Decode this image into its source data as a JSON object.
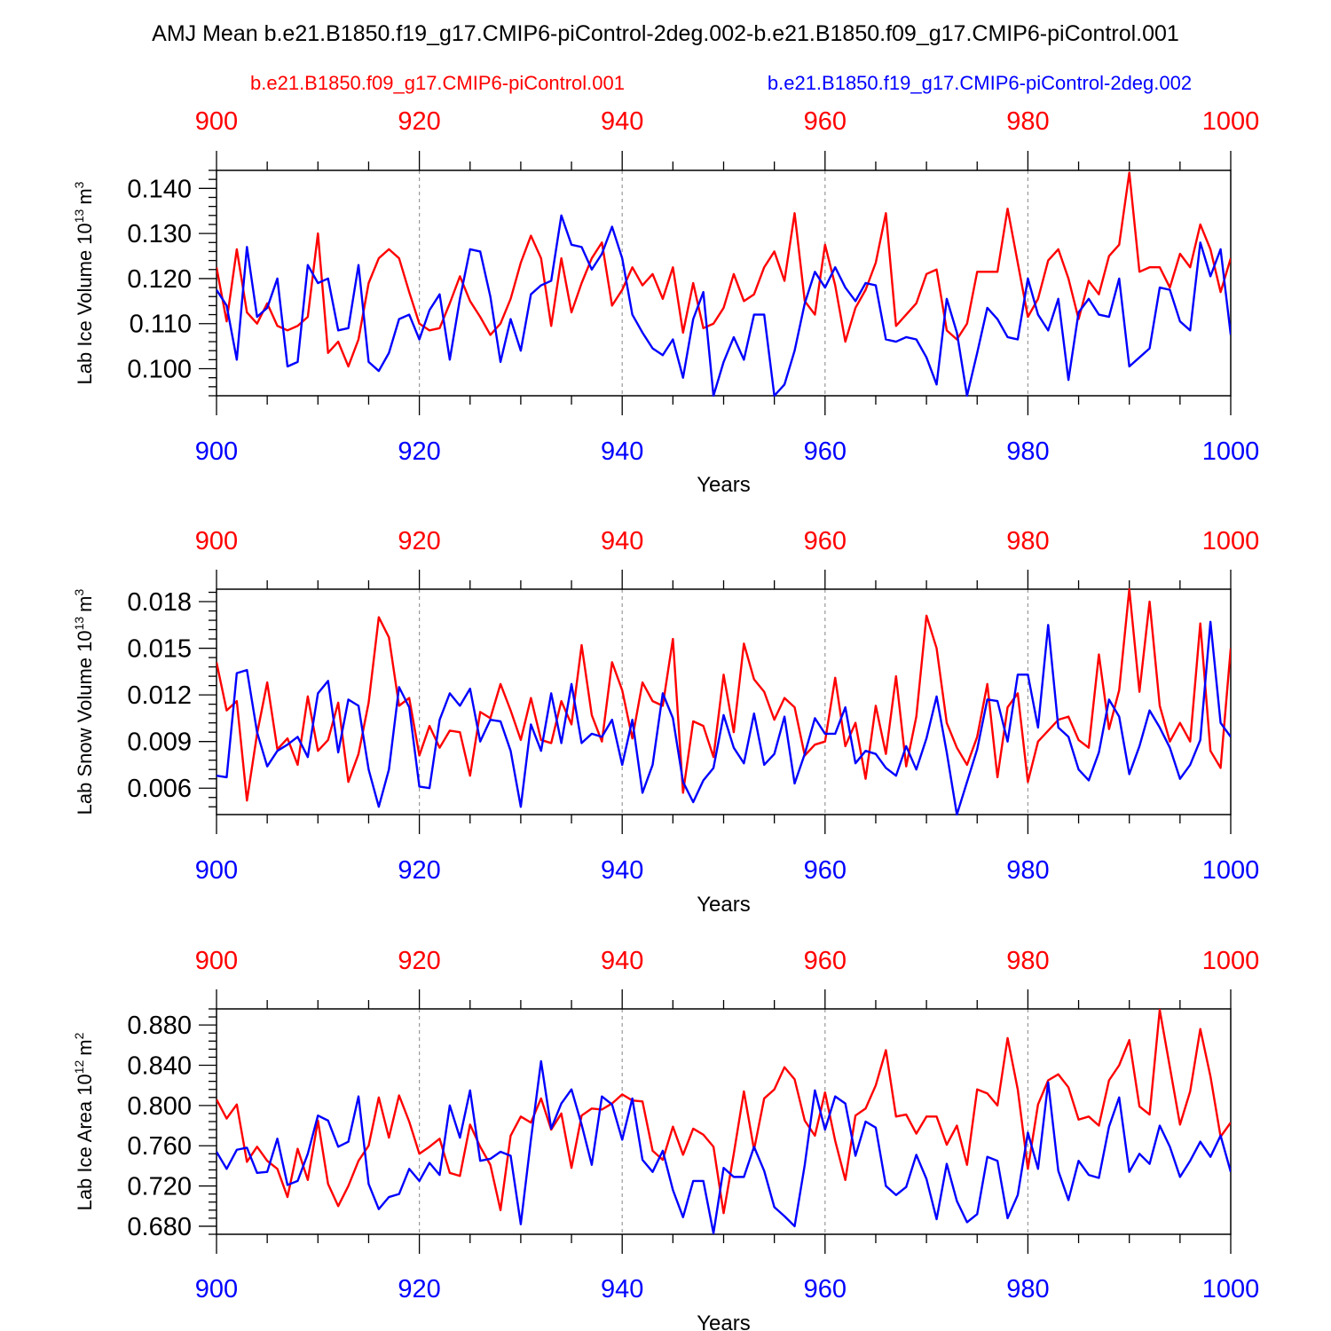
{
  "figure": {
    "title": "AMJ Mean b.e21.B1850.f19_g17.CMIP6-piControl-2deg.002-b.e21.B1850.f09_g17.CMIP6-piControl.001"
  },
  "chart_data": [
    {
      "type": "line",
      "title": "AMJ Mean b.e21.B1850.f19_g17.CMIP6-piControl-2deg.002-b.e21.B1850.f09_g17.CMIP6-piControl.001",
      "xlabel": "Years",
      "ylabel": "Lab Ice Volume 10",
      "ylabel_exp": "13",
      "ylabel_unit": "m",
      "ylabel_unit_exp": "3",
      "xlim": [
        900,
        1000
      ],
      "ylim": [
        0.094,
        0.144
      ],
      "xticks": [
        "900",
        "920",
        "940",
        "960",
        "980",
        "1000"
      ],
      "yticks": [
        "0.100",
        "0.110",
        "0.120",
        "0.130",
        "0.140"
      ],
      "top_x_color": "#ff0000",
      "bottom_x_color": "#0000ff",
      "series": [
        {
          "name": "b.e21.B1850.f09_g17.CMIP6-piControl.001",
          "color": "#ff0000",
          "values": [
            0.1225,
            0.1105,
            0.1265,
            0.1125,
            0.11,
            0.1145,
            0.1095,
            0.1085,
            0.1095,
            0.1115,
            0.13,
            0.1035,
            0.106,
            0.1005,
            0.1065,
            0.119,
            0.1245,
            0.1265,
            0.1245,
            0.117,
            0.11,
            0.1085,
            0.109,
            0.1145,
            0.1205,
            0.115,
            0.1115,
            0.1075,
            0.11,
            0.1155,
            0.1235,
            0.1295,
            0.1245,
            0.1095,
            0.1245,
            0.1125,
            0.119,
            0.1245,
            0.128,
            0.114,
            0.1175,
            0.1225,
            0.1185,
            0.121,
            0.1155,
            0.1225,
            0.108,
            0.119,
            0.109,
            0.11,
            0.1135,
            0.121,
            0.115,
            0.1165,
            0.1225,
            0.126,
            0.1195,
            0.1345,
            0.115,
            0.112,
            0.1275,
            0.1185,
            0.106,
            0.1135,
            0.1175,
            0.1235,
            0.1345,
            0.1095,
            0.112,
            0.1145,
            0.121,
            0.122,
            0.1085,
            0.1065,
            0.11,
            0.1215,
            0.1215,
            0.1215,
            0.1355,
            0.1235,
            0.1115,
            0.1155,
            0.124,
            0.1265,
            0.12,
            0.111,
            0.1195,
            0.1165,
            0.125,
            0.1275,
            0.1435,
            0.1215,
            0.1225,
            0.1225,
            0.118,
            0.1255,
            0.1225,
            0.132,
            0.1265,
            0.117,
            0.1245
          ]
        },
        {
          "name": "b.e21.B1850.f19_g17.CMIP6-piControl-2deg.002",
          "color": "#0000ff",
          "values": [
            0.1175,
            0.114,
            0.102,
            0.127,
            0.1115,
            0.1135,
            0.12,
            0.1005,
            0.1015,
            0.123,
            0.119,
            0.12,
            0.1085,
            0.109,
            0.123,
            0.1015,
            0.0995,
            0.1035,
            0.111,
            0.112,
            0.1065,
            0.113,
            0.1165,
            0.102,
            0.1155,
            0.1265,
            0.126,
            0.116,
            0.1015,
            0.111,
            0.104,
            0.1165,
            0.1185,
            0.1195,
            0.134,
            0.1275,
            0.127,
            0.122,
            0.1255,
            0.1315,
            0.1245,
            0.112,
            0.108,
            0.1045,
            0.103,
            0.1065,
            0.098,
            0.111,
            0.117,
            0.094,
            0.1015,
            0.107,
            0.102,
            0.112,
            0.112,
            0.094,
            0.0965,
            0.104,
            0.1145,
            0.1215,
            0.118,
            0.1225,
            0.118,
            0.115,
            0.119,
            0.1185,
            0.1065,
            0.106,
            0.107,
            0.1065,
            0.1025,
            0.0965,
            0.1155,
            0.108,
            0.094,
            0.1035,
            0.1135,
            0.111,
            0.107,
            0.1065,
            0.12,
            0.112,
            0.1085,
            0.1155,
            0.0975,
            0.1125,
            0.1155,
            0.112,
            0.1115,
            0.12,
            0.1005,
            0.1025,
            0.1045,
            0.118,
            0.1175,
            0.1105,
            0.1085,
            0.128,
            0.1205,
            0.1265,
            0.1075
          ]
        }
      ]
    },
    {
      "type": "line",
      "xlabel": "Years",
      "ylabel": "Lab Snow Volume 10",
      "ylabel_exp": "13",
      "ylabel_unit": "m",
      "ylabel_unit_exp": "3",
      "xlim": [
        900,
        1000
      ],
      "ylim": [
        0.0043,
        0.0188
      ],
      "xticks": [
        "900",
        "920",
        "940",
        "960",
        "980",
        "1000"
      ],
      "yticks": [
        "0.006",
        "0.009",
        "0.012",
        "0.015",
        "0.018"
      ],
      "top_x_color": "#ff0000",
      "bottom_x_color": "#0000ff",
      "series": [
        {
          "name": "b.e21.B1850.f09_g17.CMIP6-piControl.001",
          "color": "#ff0000",
          "values": [
            0.0141,
            0.011,
            0.0116,
            0.0052,
            0.0095,
            0.0128,
            0.0085,
            0.0092,
            0.0075,
            0.0119,
            0.0084,
            0.0091,
            0.0115,
            0.0064,
            0.0082,
            0.0115,
            0.017,
            0.0157,
            0.0113,
            0.0118,
            0.0081,
            0.01,
            0.0086,
            0.0097,
            0.0096,
            0.0068,
            0.0109,
            0.0105,
            0.0127,
            0.011,
            0.0091,
            0.0118,
            0.0091,
            0.0089,
            0.0116,
            0.0101,
            0.0152,
            0.0107,
            0.009,
            0.0141,
            0.0123,
            0.0092,
            0.0128,
            0.0116,
            0.0113,
            0.0156,
            0.0057,
            0.0103,
            0.01,
            0.008,
            0.0133,
            0.0096,
            0.0153,
            0.013,
            0.0122,
            0.0104,
            0.0118,
            0.0112,
            0.0081,
            0.0088,
            0.009,
            0.0131,
            0.0087,
            0.0102,
            0.0066,
            0.0113,
            0.0082,
            0.0132,
            0.0074,
            0.0106,
            0.0171,
            0.015,
            0.0102,
            0.0086,
            0.0075,
            0.0093,
            0.0127,
            0.0067,
            0.0112,
            0.0121,
            0.0064,
            0.009,
            0.0097,
            0.0104,
            0.0106,
            0.0091,
            0.0086,
            0.0146,
            0.0098,
            0.0123,
            0.0188,
            0.0122,
            0.018,
            0.0113,
            0.009,
            0.0102,
            0.009,
            0.0166,
            0.0084,
            0.0073,
            0.015
          ]
        },
        {
          "name": "b.e21.B1850.f19_g17.CMIP6-piControl-2deg.002",
          "color": "#0000ff",
          "values": [
            0.0068,
            0.0067,
            0.0134,
            0.0136,
            0.0096,
            0.0074,
            0.0084,
            0.0088,
            0.0093,
            0.008,
            0.0121,
            0.0129,
            0.0083,
            0.0117,
            0.0113,
            0.0072,
            0.0048,
            0.0072,
            0.0125,
            0.0112,
            0.0061,
            0.006,
            0.0104,
            0.0121,
            0.0113,
            0.0124,
            0.009,
            0.0104,
            0.0103,
            0.0084,
            0.0048,
            0.0101,
            0.0084,
            0.0121,
            0.0089,
            0.0127,
            0.0089,
            0.0095,
            0.0093,
            0.0104,
            0.0075,
            0.0104,
            0.0057,
            0.0075,
            0.0121,
            0.0105,
            0.0064,
            0.0051,
            0.0065,
            0.0073,
            0.0107,
            0.0086,
            0.0076,
            0.0108,
            0.0075,
            0.0082,
            0.0106,
            0.0063,
            0.0082,
            0.0105,
            0.0095,
            0.0095,
            0.0112,
            0.0076,
            0.0084,
            0.0082,
            0.0073,
            0.0068,
            0.0087,
            0.0072,
            0.0092,
            0.0119,
            0.0083,
            0.0043,
            0.0064,
            0.0085,
            0.0117,
            0.0116,
            0.009,
            0.0133,
            0.0133,
            0.0099,
            0.0165,
            0.0099,
            0.0093,
            0.0072,
            0.0065,
            0.0083,
            0.0117,
            0.0106,
            0.0069,
            0.0087,
            0.011,
            0.0099,
            0.0086,
            0.0066,
            0.0075,
            0.0091,
            0.0167,
            0.0102,
            0.0093
          ]
        }
      ]
    },
    {
      "type": "line",
      "xlabel": "Years",
      "ylabel": "Lab Ice Area 10",
      "ylabel_exp": "12",
      "ylabel_unit": "m",
      "ylabel_unit_exp": "2",
      "xlim": [
        900,
        1000
      ],
      "ylim": [
        0.672,
        0.896
      ],
      "xticks": [
        "900",
        "920",
        "940",
        "960",
        "980",
        "1000"
      ],
      "yticks": [
        "0.680",
        "0.720",
        "0.760",
        "0.800",
        "0.840",
        "0.880"
      ],
      "top_x_color": "#ff0000",
      "bottom_x_color": "#0000ff",
      "series": [
        {
          "name": "b.e21.B1850.f09_g17.CMIP6-piControl.001",
          "color": "#ff0000",
          "values": [
            0.806,
            0.787,
            0.801,
            0.744,
            0.759,
            0.745,
            0.737,
            0.709,
            0.757,
            0.726,
            0.785,
            0.722,
            0.7,
            0.72,
            0.745,
            0.76,
            0.808,
            0.768,
            0.81,
            0.784,
            0.752,
            0.759,
            0.767,
            0.733,
            0.73,
            0.781,
            0.759,
            0.741,
            0.696,
            0.77,
            0.789,
            0.783,
            0.807,
            0.776,
            0.792,
            0.738,
            0.79,
            0.797,
            0.796,
            0.802,
            0.811,
            0.805,
            0.804,
            0.755,
            0.746,
            0.779,
            0.751,
            0.777,
            0.771,
            0.759,
            0.693,
            0.752,
            0.814,
            0.756,
            0.807,
            0.816,
            0.838,
            0.826,
            0.785,
            0.77,
            0.813,
            0.765,
            0.726,
            0.79,
            0.797,
            0.82,
            0.855,
            0.789,
            0.791,
            0.772,
            0.789,
            0.789,
            0.761,
            0.78,
            0.741,
            0.816,
            0.812,
            0.8,
            0.867,
            0.816,
            0.737,
            0.801,
            0.825,
            0.831,
            0.818,
            0.786,
            0.789,
            0.78,
            0.825,
            0.84,
            0.865,
            0.799,
            0.791,
            0.895,
            0.838,
            0.781,
            0.814,
            0.876,
            0.829,
            0.769,
            0.783
          ]
        },
        {
          "name": "b.e21.B1850.f19_g17.CMIP6-piControl-2deg.002",
          "color": "#0000ff",
          "values": [
            0.754,
            0.737,
            0.756,
            0.758,
            0.733,
            0.734,
            0.767,
            0.721,
            0.725,
            0.752,
            0.79,
            0.785,
            0.759,
            0.764,
            0.809,
            0.722,
            0.697,
            0.709,
            0.712,
            0.737,
            0.725,
            0.743,
            0.731,
            0.8,
            0.768,
            0.815,
            0.745,
            0.747,
            0.754,
            0.75,
            0.682,
            0.766,
            0.844,
            0.777,
            0.802,
            0.816,
            0.781,
            0.741,
            0.809,
            0.801,
            0.766,
            0.807,
            0.746,
            0.734,
            0.755,
            0.716,
            0.689,
            0.725,
            0.725,
            0.673,
            0.738,
            0.729,
            0.729,
            0.759,
            0.735,
            0.699,
            0.69,
            0.68,
            0.741,
            0.815,
            0.776,
            0.809,
            0.802,
            0.75,
            0.784,
            0.778,
            0.72,
            0.711,
            0.719,
            0.751,
            0.727,
            0.687,
            0.742,
            0.705,
            0.684,
            0.692,
            0.749,
            0.745,
            0.688,
            0.711,
            0.773,
            0.737,
            0.823,
            0.735,
            0.706,
            0.745,
            0.731,
            0.728,
            0.779,
            0.808,
            0.734,
            0.752,
            0.742,
            0.78,
            0.759,
            0.729,
            0.745,
            0.764,
            0.749,
            0.77,
            0.734
          ]
        }
      ]
    }
  ]
}
